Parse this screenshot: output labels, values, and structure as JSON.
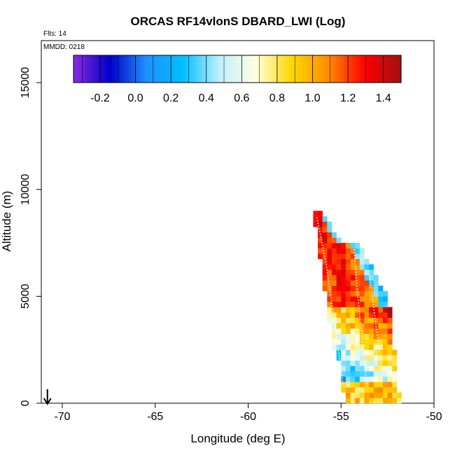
{
  "chart_data": {
    "type": "heatmap",
    "title": "ORCAS RF14vlonS DBARD_LWI (Log)",
    "annotations": [
      "Flts: 14",
      "MMDD: 0218"
    ],
    "xlabel": "Longitude (deg E)",
    "ylabel": "Altitude (m)",
    "xlim": [
      -71,
      -50
    ],
    "ylim": [
      0,
      16500
    ],
    "x_ticks": [
      -70,
      -65,
      -60,
      -55,
      -50
    ],
    "y_ticks": [
      0,
      5000,
      10000,
      15000
    ],
    "colorbar": {
      "range": [
        -0.35,
        1.5
      ],
      "ticks": [
        "-0.2",
        "0.0",
        "0.2",
        "0.4",
        "0.6",
        "0.8",
        "1.0",
        "1.2",
        "1.4"
      ],
      "tick_values": [
        -0.2,
        0.0,
        0.2,
        0.4,
        0.6,
        0.8,
        1.0,
        1.2,
        1.4
      ],
      "colors": [
        "#8a2be2",
        "#0000c8",
        "#1e90ff",
        "#00bfff",
        "#bfefff",
        "#ffffe0",
        "#ffd700",
        "#ff8c00",
        "#ff0000",
        "#a01010"
      ]
    },
    "surface_marker": {
      "x": -70.8,
      "y": 0
    },
    "band": {
      "lon_range": [
        -56.5,
        -51.8
      ],
      "alt_range": [
        0,
        9000
      ]
    },
    "flight_tracks": [
      {
        "points": [
          [
            -56.3,
            8700
          ],
          [
            -55.8,
            6500
          ],
          [
            -55.3,
            3500
          ],
          [
            -54.9,
            900
          ]
        ]
      },
      {
        "points": [
          [
            -54.3,
            7200
          ],
          [
            -54.1,
            5000
          ],
          [
            -53.8,
            2500
          ],
          [
            -53.6,
            800
          ]
        ]
      },
      {
        "points": [
          [
            -53.5,
            6200
          ],
          [
            -53.1,
            3500
          ],
          [
            -52.8,
            1500
          ]
        ]
      }
    ]
  }
}
